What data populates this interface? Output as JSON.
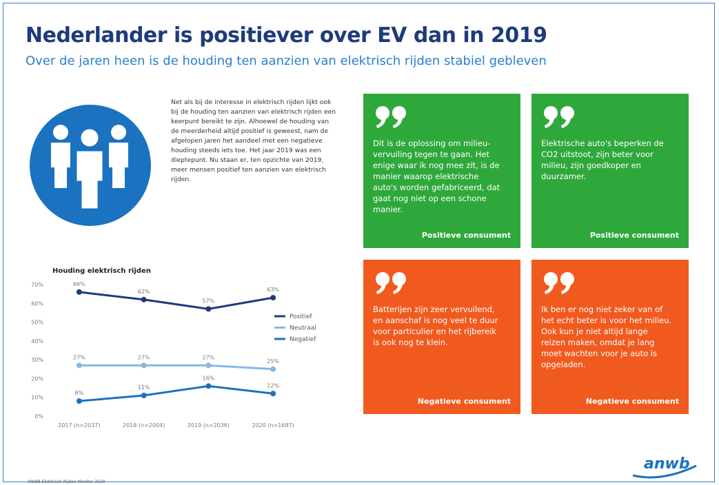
{
  "header": {
    "title": "Nederlander is positiever over EV dan in 2019",
    "subtitle": "Over de jaren heen is de houding ten aanzien van elektrisch rijden stabiel gebleven"
  },
  "intro": "Net als bij de interesse in elektrisch rijden lijkt ook bij de houding ten aanzien van elektrisch rijden een keerpunt bereikt te zijn. Alhoewel de houding van de meerderheid altijd positief is geweest, nam de afgelopen jaren het aandeel met een negatieve houding steeds iets toe. Het jaar 2019 was een dieptepunt. Nu staan er, ten opzichte van 2019, meer mensen positief ten aanzien van elektrisch rijden.",
  "chart_data": {
    "type": "line",
    "title": "Houding elektrisch rijden",
    "categories": [
      "2017 (n=2037)",
      "2018 (n=2004)",
      "2019 (n=2036)",
      "2020 (n=1687)"
    ],
    "series": [
      {
        "name": "Positief",
        "color": "#1d3b7c",
        "values": [
          66,
          62,
          57,
          63
        ],
        "value_labels": [
          "66%",
          "62%",
          "57%",
          "63%"
        ]
      },
      {
        "name": "Neutraal",
        "color": "#86b8e8",
        "values": [
          27,
          27,
          27,
          25
        ],
        "value_labels": [
          "27%",
          "27%",
          "27%",
          "25%"
        ]
      },
      {
        "name": "Negatief",
        "color": "#1a72c0",
        "values": [
          8,
          11,
          16,
          12
        ],
        "value_labels": [
          "8%",
          "11%",
          "16%",
          "12%"
        ]
      }
    ],
    "ylim": [
      0,
      70
    ],
    "yticks": [
      {
        "value": 0,
        "label": "0%"
      },
      {
        "value": 10,
        "label": "10%"
      },
      {
        "value": 20,
        "label": "20%"
      },
      {
        "value": 30,
        "label": "30%"
      },
      {
        "value": 40,
        "label": "40%"
      },
      {
        "value": 50,
        "label": "50%"
      },
      {
        "value": 60,
        "label": "60%"
      },
      {
        "value": 70,
        "label": "70%"
      }
    ],
    "legend": "right",
    "grid": false
  },
  "quotes": [
    {
      "text": "Dit is de oplossing om milieu-vervuiling tegen te gaan. Het enige waar ik nog mee zit, is de manier waarop elektrische auto's worden gefabriceerd, dat gaat nog niet op een schone manier.",
      "author": "Positieve consument"
    },
    {
      "text": "Elektrische auto's beperken de CO2 uitstoot, zijn beter voor milieu, zijn goedkoper en duurzamer.",
      "author": "Positieve consument"
    },
    {
      "text": "Batterijen zijn zeer vervuilend, en aanschaf is nog veel te duur voor particulier en het rijbereik is ook nog te klein.",
      "author": "Negatieve consument"
    },
    {
      "text": "Ik ben er nog niet zeker van of het echt beter is voor het milieu. Ook kun je niet altijd lange reizen maken, omdat je lang moet wachten voor je auto is opgeladen.",
      "author": "Negatieve consument"
    }
  ],
  "footer": {
    "source": "ANWB Elektrisch Rijden Monitor 2020",
    "logo": "anwb"
  }
}
